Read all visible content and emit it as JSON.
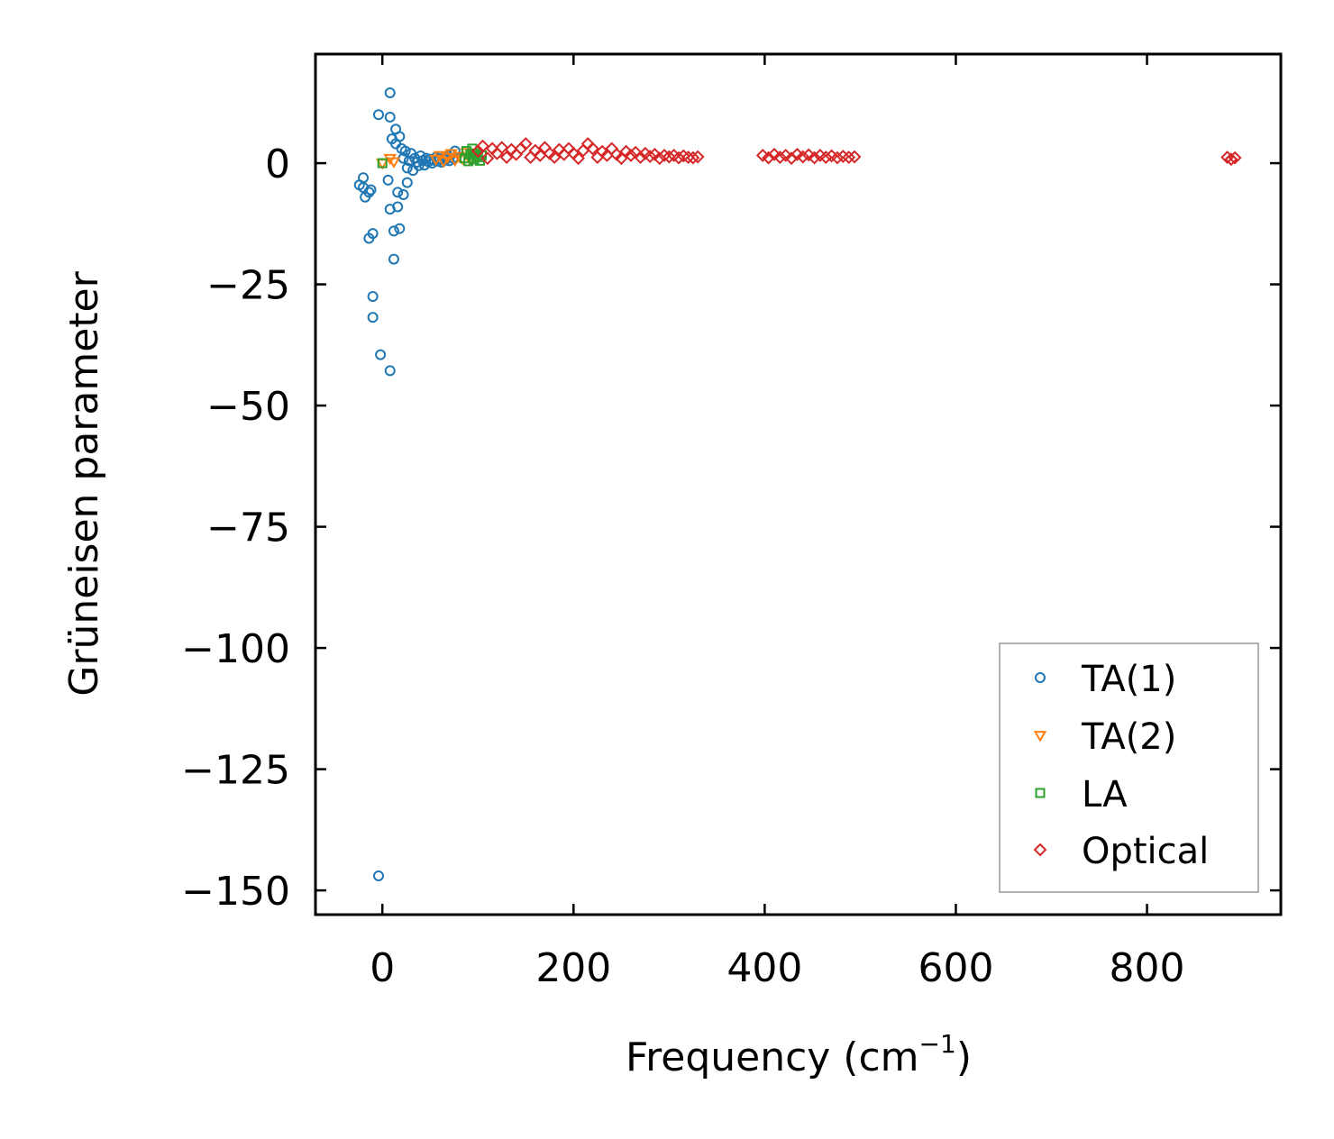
{
  "chart_data": {
    "type": "scatter",
    "xlabel": "Frequency (cm",
    "xlabel_sup": "−1",
    "xlabel_end": ")",
    "ylabel": "Grüneisen parameter",
    "xlim": [
      -70,
      940
    ],
    "ylim": [
      -155,
      22.5
    ],
    "xticks": [
      0,
      200,
      400,
      600,
      800
    ],
    "xtick_labels": [
      "0",
      "200",
      "400",
      "600",
      "800"
    ],
    "yticks": [
      0,
      -25,
      -50,
      -75,
      -100,
      -125,
      -150
    ],
    "ytick_labels": [
      "0",
      "−25",
      "−50",
      "−75",
      "−100",
      "−125",
      "−150"
    ],
    "grid": false,
    "legend_position": "lower-right",
    "series": [
      {
        "name": "TA(1)",
        "marker": "circle",
        "color": "#1f77b4",
        "points": [
          [
            -4,
            -147
          ],
          [
            -2,
            -39.5
          ],
          [
            8,
            -42.8
          ],
          [
            -10,
            -31.8
          ],
          [
            -10,
            -27.5
          ],
          [
            12,
            -19.8
          ],
          [
            -14,
            -15.5
          ],
          [
            -10,
            -14.5
          ],
          [
            12,
            -14
          ],
          [
            18,
            -13.5
          ],
          [
            8,
            -9.5
          ],
          [
            16,
            -9
          ],
          [
            -18,
            -7
          ],
          [
            -14,
            -6
          ],
          [
            -12,
            -5.5
          ],
          [
            -20,
            -5
          ],
          [
            -24,
            -4.5
          ],
          [
            -20,
            -3
          ],
          [
            6,
            -3.5
          ],
          [
            16,
            -6
          ],
          [
            22,
            -6.5
          ],
          [
            26,
            -4
          ],
          [
            -4,
            10
          ],
          [
            8,
            9.5
          ],
          [
            8,
            14.5
          ],
          [
            14,
            7
          ],
          [
            10,
            5
          ],
          [
            14,
            4
          ],
          [
            18,
            5.5
          ],
          [
            20,
            3
          ],
          [
            22,
            1
          ],
          [
            24,
            2.5
          ],
          [
            26,
            -1
          ],
          [
            28,
            0.5
          ],
          [
            30,
            2
          ],
          [
            32,
            -1.5
          ],
          [
            34,
            1
          ],
          [
            36,
            0.2
          ],
          [
            38,
            -0.5
          ],
          [
            40,
            1.5
          ],
          [
            42,
            0.5
          ],
          [
            44,
            -0.4
          ],
          [
            46,
            1
          ],
          [
            48,
            0.3
          ],
          [
            50,
            0.8
          ],
          [
            52,
            0
          ],
          [
            54,
            0.6
          ],
          [
            56,
            1.2
          ],
          [
            58,
            0.4
          ],
          [
            60,
            0.9
          ],
          [
            62,
            0.2
          ],
          [
            64,
            1.1
          ],
          [
            66,
            0.7
          ],
          [
            68,
            1.5
          ],
          [
            70,
            0.5
          ],
          [
            72,
            1.8
          ],
          [
            74,
            1
          ],
          [
            76,
            2.5
          ]
        ]
      },
      {
        "name": "TA(2)",
        "marker": "triangle-down",
        "color": "#ff7f0e",
        "points": [
          [
            0,
            0
          ],
          [
            8,
            1
          ],
          [
            12,
            0.3
          ],
          [
            56,
            0.8
          ],
          [
            60,
            1.6
          ],
          [
            64,
            0.4
          ],
          [
            68,
            1.2
          ],
          [
            72,
            2
          ],
          [
            76,
            0.6
          ],
          [
            80,
            1.4
          ],
          [
            84,
            0.9
          ],
          [
            88,
            2.2
          ],
          [
            92,
            0.7
          ],
          [
            96,
            1.5
          ]
        ]
      },
      {
        "name": "LA",
        "marker": "square",
        "color": "#2ca02c",
        "points": [
          [
            0,
            0
          ],
          [
            86,
            1
          ],
          [
            88,
            2.5
          ],
          [
            90,
            0.4
          ],
          [
            92,
            1.8
          ],
          [
            94,
            3
          ],
          [
            96,
            0.8
          ],
          [
            98,
            2
          ],
          [
            100,
            1.2
          ],
          [
            102,
            0.5
          ],
          [
            104,
            1.6
          ]
        ]
      },
      {
        "name": "Optical",
        "marker": "diamond",
        "color": "#d62728",
        "points": [
          [
            100,
            2.5
          ],
          [
            105,
            3.5
          ],
          [
            110,
            1
          ],
          [
            115,
            3
          ],
          [
            120,
            2
          ],
          [
            125,
            3.2
          ],
          [
            130,
            1.2
          ],
          [
            135,
            2.8
          ],
          [
            140,
            1.8
          ],
          [
            145,
            3
          ],
          [
            150,
            4
          ],
          [
            155,
            1.2
          ],
          [
            160,
            2.6
          ],
          [
            165,
            1.6
          ],
          [
            170,
            3.2
          ],
          [
            175,
            2
          ],
          [
            180,
            1.2
          ],
          [
            185,
            2.8
          ],
          [
            190,
            1.8
          ],
          [
            195,
            3
          ],
          [
            200,
            2
          ],
          [
            205,
            1
          ],
          [
            210,
            2.6
          ],
          [
            215,
            4
          ],
          [
            220,
            3
          ],
          [
            225,
            1.2
          ],
          [
            230,
            2.4
          ],
          [
            235,
            1.6
          ],
          [
            240,
            3
          ],
          [
            245,
            1.8
          ],
          [
            250,
            1
          ],
          [
            255,
            2.4
          ],
          [
            260,
            1.6
          ],
          [
            265,
            2.2
          ],
          [
            270,
            1.2
          ],
          [
            275,
            2
          ],
          [
            280,
            1.4
          ],
          [
            285,
            1.8
          ],
          [
            290,
            1
          ],
          [
            295,
            1.6
          ],
          [
            300,
            1.3
          ],
          [
            305,
            1.6
          ],
          [
            310,
            1.1
          ],
          [
            315,
            1.5
          ],
          [
            320,
            1.2
          ],
          [
            325,
            1.1
          ],
          [
            330,
            1.3
          ],
          [
            398,
            1.6
          ],
          [
            404,
            1.1
          ],
          [
            410,
            1.8
          ],
          [
            416,
            1.2
          ],
          [
            422,
            1.6
          ],
          [
            428,
            1
          ],
          [
            434,
            1.8
          ],
          [
            440,
            1.3
          ],
          [
            446,
            1.7
          ],
          [
            452,
            1.1
          ],
          [
            458,
            1.6
          ],
          [
            464,
            1.2
          ],
          [
            470,
            1.5
          ],
          [
            476,
            1.1
          ],
          [
            482,
            1.4
          ],
          [
            488,
            1.2
          ],
          [
            494,
            1.3
          ],
          [
            884,
            1.2
          ],
          [
            888,
            0.8
          ],
          [
            892,
            1.1
          ]
        ]
      }
    ]
  }
}
